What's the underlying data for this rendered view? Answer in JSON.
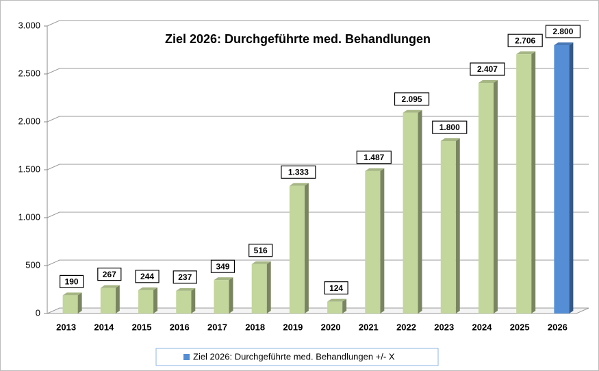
{
  "chart_data": {
    "type": "bar",
    "title": "Ziel 2026: Durchgeführte med. Behandlungen",
    "categories": [
      "2013",
      "2014",
      "2015",
      "2016",
      "2017",
      "2018",
      "2019",
      "2020",
      "2021",
      "2022",
      "2023",
      "2024",
      "2025",
      "2026"
    ],
    "values": [
      190,
      267,
      244,
      237,
      349,
      516,
      1333,
      124,
      1487,
      2095,
      1800,
      2407,
      2706,
      2800
    ],
    "value_labels": [
      "190",
      "267",
      "244",
      "237",
      "349",
      "516",
      "1.333",
      "124",
      "1.487",
      "2.095",
      "1.800",
      "2.407",
      "2.706",
      "2.800"
    ],
    "colors": [
      "#c3d69b",
      "#c3d69b",
      "#c3d69b",
      "#c3d69b",
      "#c3d69b",
      "#c3d69b",
      "#c3d69b",
      "#c3d69b",
      "#c3d69b",
      "#c3d69b",
      "#c3d69b",
      "#c3d69b",
      "#c3d69b",
      "#558ed5"
    ],
    "ylim": [
      0,
      3000
    ],
    "yticks": [
      0,
      500,
      {
        "value": 1000,
        "label": "1.000"
      },
      {
        "value": 1500,
        "label": "1.500"
      },
      {
        "value": 2000,
        "label": "2.000"
      },
      {
        "value": 2500,
        "label": "2.500"
      },
      {
        "value": 3000,
        "label": "3.000"
      }
    ],
    "grid": true,
    "legend": {
      "label": "Ziel 2026: Durchgeführte med. Behandlungen +/- X",
      "color": "#558ed5",
      "position": "bottom"
    }
  }
}
